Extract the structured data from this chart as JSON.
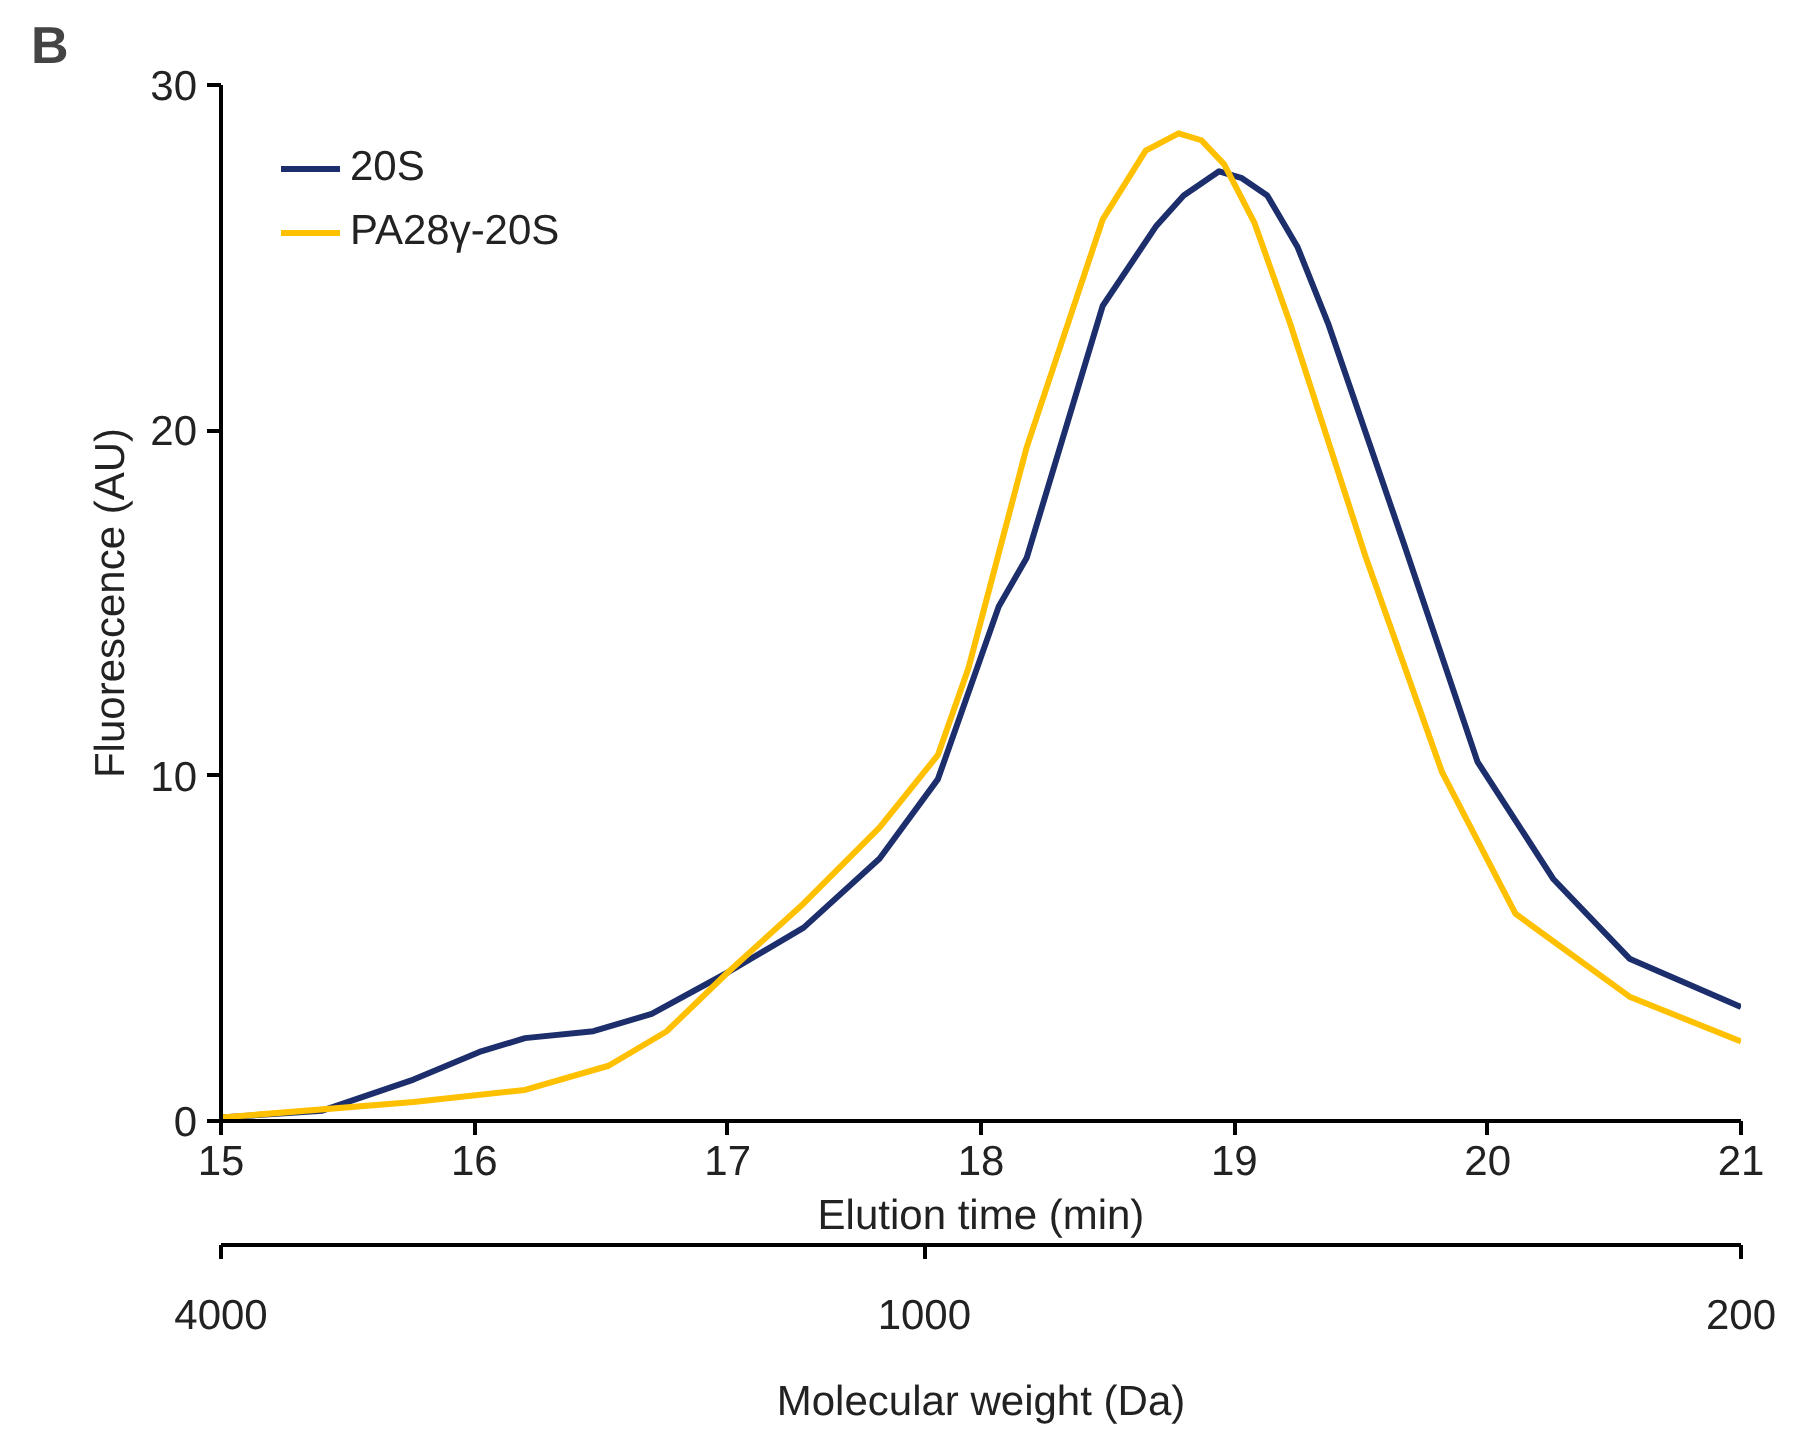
{
  "chart_data": {
    "type": "line",
    "title": "B",
    "xlabel": "Elution time (min)",
    "ylabel": "Fluorescence (AU)",
    "x2label": "Molecular weight (Da)",
    "xlim": [
      15,
      21
    ],
    "xticks": [
      15,
      16,
      17,
      18,
      19,
      20,
      21
    ],
    "ylim": [
      0,
      30
    ],
    "yticks": [
      0,
      10,
      20,
      30
    ],
    "x2lim": [
      4000,
      200
    ],
    "x2ticks": [
      4000,
      1000,
      200
    ],
    "log": "x2",
    "legend": "top left",
    "series": [
      {
        "name": "20S",
        "color": "#1c2e6b",
        "x": [
          15.0,
          15.4,
          15.76,
          16.02,
          16.2,
          16.47,
          16.7,
          17.0,
          17.3,
          17.6,
          17.83,
          18.07,
          18.18,
          18.48,
          18.69,
          18.8,
          18.94,
          19.03,
          19.13,
          19.25,
          19.37,
          19.67,
          19.96,
          20.26,
          20.56,
          21.0
        ],
        "values": [
          0.1,
          0.3,
          1.2,
          2.0,
          2.4,
          2.6,
          3.1,
          4.3,
          5.6,
          7.6,
          9.9,
          14.9,
          16.3,
          23.6,
          25.9,
          26.8,
          27.5,
          27.3,
          26.8,
          25.3,
          23.1,
          16.7,
          10.4,
          7.0,
          4.7,
          3.3
        ]
      },
      {
        "name": "PA28γ-20S",
        "color": "#ffc000",
        "x": [
          15.0,
          15.76,
          16.2,
          16.53,
          16.76,
          17.0,
          17.3,
          17.6,
          17.83,
          17.95,
          18.18,
          18.48,
          18.65,
          18.78,
          18.87,
          18.96,
          19.08,
          19.22,
          19.52,
          19.82,
          20.11,
          20.56,
          21.0
        ],
        "values": [
          0.1,
          0.55,
          0.9,
          1.6,
          2.6,
          4.3,
          6.3,
          8.5,
          10.6,
          13.1,
          19.5,
          26.1,
          28.1,
          28.6,
          28.4,
          27.7,
          26.0,
          23.1,
          16.3,
          10.1,
          6.0,
          3.6,
          2.3
        ]
      }
    ]
  }
}
